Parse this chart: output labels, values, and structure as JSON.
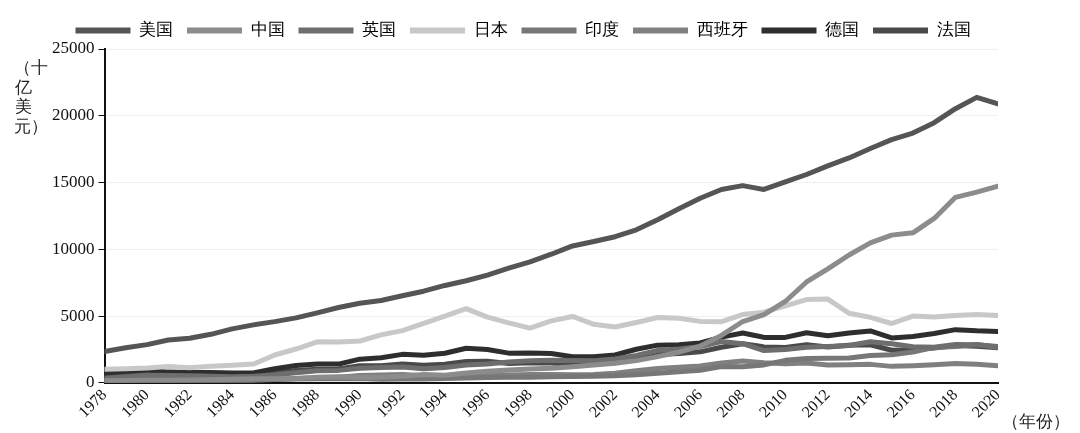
{
  "chart_data": {
    "type": "line",
    "xlabel": "（年份）",
    "ylabel": "（十亿美元）",
    "x": [
      1978,
      1979,
      1980,
      1981,
      1982,
      1983,
      1984,
      1985,
      1986,
      1987,
      1988,
      1989,
      1990,
      1991,
      1992,
      1993,
      1994,
      1995,
      1996,
      1997,
      1998,
      1999,
      2000,
      2001,
      2002,
      2003,
      2004,
      2005,
      2006,
      2007,
      2008,
      2009,
      2010,
      2011,
      2012,
      2013,
      2014,
      2015,
      2016,
      2017,
      2018,
      2019,
      2020
    ],
    "xlim": [
      1978,
      2020
    ],
    "xticks": [
      1978,
      1980,
      1982,
      1984,
      1986,
      1988,
      1990,
      1992,
      1994,
      1996,
      1998,
      2000,
      2002,
      2004,
      2006,
      2008,
      2010,
      2012,
      2014,
      2016,
      2018,
      2020
    ],
    "ylim": [
      0,
      25000
    ],
    "yticks": [
      0,
      5000,
      10000,
      15000,
      20000,
      25000
    ],
    "grid": "y",
    "legend": "top",
    "marker": "none",
    "line_style": "solid",
    "series": [
      {
        "name": "美国",
        "color": "#555555",
        "values": [
          2350,
          2630,
          2860,
          3210,
          3340,
          3630,
          4040,
          4340,
          4580,
          4860,
          5240,
          5640,
          5960,
          6160,
          6520,
          6860,
          7290,
          7640,
          8070,
          8580,
          9060,
          9630,
          10250,
          10580,
          10940,
          11460,
          12210,
          13040,
          13820,
          14480,
          14770,
          14480,
          15050,
          15600,
          16250,
          16840,
          17550,
          18210,
          18700,
          19480,
          20530,
          21380,
          20890
        ]
      },
      {
        "name": "中国",
        "color": "#8c8c8c",
        "values": [
          150,
          180,
          190,
          200,
          210,
          230,
          260,
          310,
          300,
          330,
          410,
          460,
          400,
          420,
          490,
          620,
          560,
          730,
          860,
          960,
          1030,
          1090,
          1210,
          1340,
          1470,
          1660,
          1960,
          2290,
          2750,
          3550,
          4590,
          5100,
          6090,
          7550,
          8530,
          9570,
          10480,
          11060,
          11230,
          12310,
          13890,
          14280,
          14720
        ]
      },
      {
        "name": "英国",
        "color": "#6e6e6e",
        "values": [
          340,
          440,
          560,
          540,
          520,
          490,
          460,
          490,
          600,
          750,
          910,
          930,
          1090,
          1140,
          1180,
          1060,
          1140,
          1340,
          1410,
          1560,
          1650,
          1690,
          1670,
          1650,
          1790,
          2050,
          2420,
          2540,
          2710,
          3090,
          2930,
          2410,
          2490,
          2660,
          2710,
          2790,
          3070,
          2930,
          2700,
          2670,
          2870,
          2850,
          2710
        ]
      },
      {
        "name": "日本",
        "color": "#c8c8c8",
        "values": [
          1020,
          1060,
          1110,
          1220,
          1130,
          1240,
          1320,
          1400,
          2080,
          2530,
          3070,
          3050,
          3130,
          3590,
          3910,
          4450,
          5000,
          5550,
          4920,
          4490,
          4100,
          4640,
          4970,
          4380,
          4180,
          4520,
          4890,
          4830,
          4600,
          4580,
          5110,
          5290,
          5760,
          6230,
          6270,
          5210,
          4900,
          4440,
          5000,
          4930,
          5040,
          5120,
          5040
        ]
      },
      {
        "name": "印度",
        "color": "#777777",
        "values": [
          140,
          150,
          190,
          190,
          200,
          220,
          210,
          230,
          250,
          280,
          300,
          300,
          320,
          270,
          290,
          280,
          330,
          360,
          390,
          420,
          420,
          460,
          470,
          490,
          520,
          610,
          710,
          820,
          940,
          1220,
          1200,
          1340,
          1680,
          1820,
          1830,
          1860,
          2040,
          2100,
          2300,
          2650,
          2710,
          2870,
          2660
        ]
      },
      {
        "name": "西班牙",
        "color": "#808080",
        "values": [
          160,
          210,
          230,
          210,
          200,
          170,
          170,
          180,
          250,
          320,
          380,
          410,
          540,
          580,
          630,
          530,
          530,
          610,
          640,
          590,
          620,
          630,
          600,
          630,
          710,
          910,
          1070,
          1160,
          1260,
          1480,
          1640,
          1500,
          1430,
          1490,
          1340,
          1360,
          1380,
          1230,
          1280,
          1360,
          1450,
          1390,
          1280
        ]
      },
      {
        "name": "德国",
        "color": "#2e2e2e",
        "values": [
          740,
          880,
          950,
          800,
          780,
          770,
          730,
          740,
          1050,
          1300,
          1400,
          1400,
          1770,
          1870,
          2130,
          2070,
          2210,
          2590,
          2500,
          2220,
          2240,
          2200,
          1950,
          1950,
          2080,
          2510,
          2820,
          2850,
          2990,
          3420,
          3730,
          3400,
          3400,
          3750,
          3530,
          3730,
          3880,
          3360,
          3470,
          3690,
          3980,
          3890,
          3850
        ]
      },
      {
        "name": "法国",
        "color": "#4a4a4a",
        "values": [
          510,
          610,
          700,
          620,
          590,
          560,
          530,
          550,
          770,
          930,
          1020,
          1030,
          1270,
          1270,
          1400,
          1320,
          1390,
          1600,
          1610,
          1450,
          1500,
          1490,
          1370,
          1380,
          1500,
          1840,
          2120,
          2200,
          2320,
          2660,
          2920,
          2690,
          2640,
          2860,
          2680,
          2810,
          2850,
          2440,
          2470,
          2600,
          2790,
          2730,
          2630
        ]
      }
    ]
  }
}
